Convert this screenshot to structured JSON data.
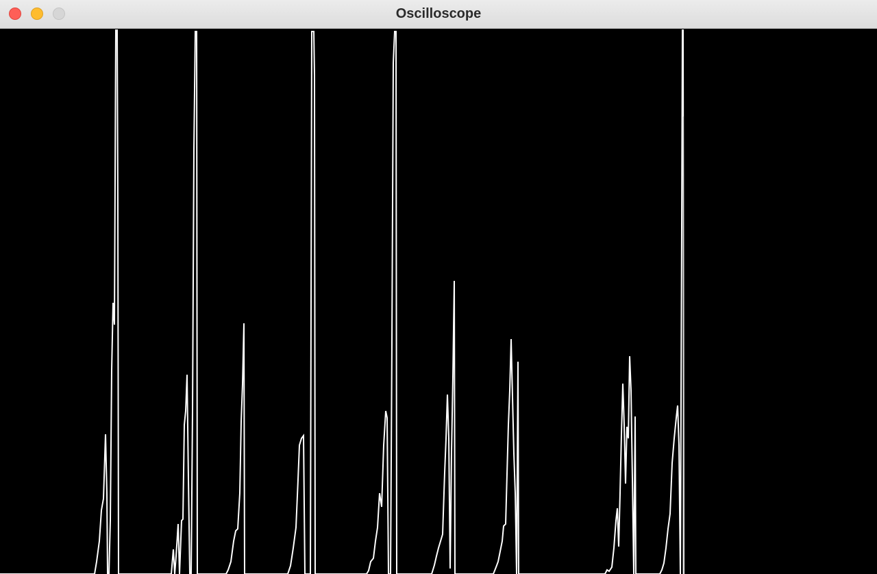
{
  "window": {
    "title": "Oscilloscope",
    "controls": {
      "close_color": "#fe5f57",
      "minimize_color": "#febc2e",
      "zoom_color": "#d6d6d6"
    }
  },
  "scope": {
    "background_color": "#000000",
    "trace_color": "#ffffff"
  }
}
